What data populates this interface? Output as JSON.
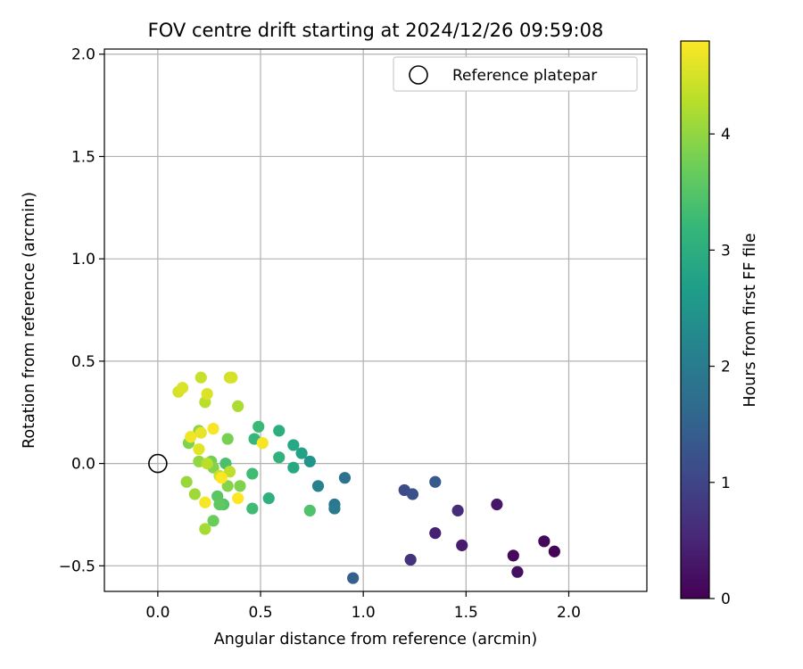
{
  "chart_data": {
    "type": "scatter",
    "title": "FOV centre drift starting at 2024/12/26 09:59:08",
    "xlabel": "Angular distance from reference (arcmin)",
    "ylabel": "Rotation from reference (arcmin)",
    "xlim": [
      -0.26,
      2.38
    ],
    "ylim": [
      -0.625,
      2.025
    ],
    "xticks": [
      0.0,
      0.5,
      1.0,
      1.5,
      2.0
    ],
    "xtick_labels": [
      "0.0",
      "0.5",
      "1.0",
      "1.5",
      "2.0"
    ],
    "yticks": [
      -0.5,
      0.0,
      0.5,
      1.0,
      1.5,
      2.0
    ],
    "ytick_labels": [
      "−0.5",
      "0.0",
      "0.5",
      "1.0",
      "1.5",
      "2.0"
    ],
    "grid": true,
    "legend": {
      "position": "top-right",
      "entries": [
        "Reference platepar"
      ]
    },
    "reference_point": {
      "x": 0.0,
      "y": 0.0,
      "label": "Reference platepar"
    },
    "colorbar": {
      "label": "Hours from first FF file",
      "colormap": "viridis",
      "range": [
        0,
        4.8
      ],
      "ticks": [
        0,
        1,
        2,
        3,
        4
      ],
      "tick_labels": [
        "0",
        "1",
        "2",
        "3",
        "4"
      ]
    },
    "points": [
      {
        "x": 1.93,
        "y": -0.43,
        "h": 0.05
      },
      {
        "x": 1.88,
        "y": -0.38,
        "h": 0.1
      },
      {
        "x": 1.73,
        "y": -0.45,
        "h": 0.1
      },
      {
        "x": 1.75,
        "y": -0.53,
        "h": 0.2
      },
      {
        "x": 1.65,
        "y": -0.2,
        "h": 0.3
      },
      {
        "x": 1.48,
        "y": -0.4,
        "h": 0.4
      },
      {
        "x": 1.35,
        "y": -0.34,
        "h": 0.45
      },
      {
        "x": 1.46,
        "y": -0.23,
        "h": 0.6
      },
      {
        "x": 1.23,
        "y": -0.47,
        "h": 0.7
      },
      {
        "x": 1.2,
        "y": -0.13,
        "h": 1.1
      },
      {
        "x": 1.24,
        "y": -0.15,
        "h": 1.2
      },
      {
        "x": 1.35,
        "y": -0.09,
        "h": 1.35
      },
      {
        "x": 0.95,
        "y": -0.56,
        "h": 1.45
      },
      {
        "x": 0.91,
        "y": -0.07,
        "h": 1.8
      },
      {
        "x": 0.86,
        "y": -0.2,
        "h": 1.9
      },
      {
        "x": 0.86,
        "y": -0.22,
        "h": 2.0
      },
      {
        "x": 0.78,
        "y": -0.11,
        "h": 2.1
      },
      {
        "x": 0.74,
        "y": 0.01,
        "h": 2.5
      },
      {
        "x": 0.7,
        "y": 0.05,
        "h": 2.75
      },
      {
        "x": 0.66,
        "y": 0.09,
        "h": 2.85
      },
      {
        "x": 0.66,
        "y": -0.02,
        "h": 2.9
      },
      {
        "x": 0.59,
        "y": 0.16,
        "h": 3.0
      },
      {
        "x": 0.59,
        "y": 0.03,
        "h": 3.1
      },
      {
        "x": 0.54,
        "y": -0.17,
        "h": 3.05
      },
      {
        "x": 0.49,
        "y": 0.18,
        "h": 3.25
      },
      {
        "x": 0.47,
        "y": 0.12,
        "h": 3.2
      },
      {
        "x": 0.46,
        "y": -0.05,
        "h": 3.3
      },
      {
        "x": 0.46,
        "y": -0.22,
        "h": 3.3
      },
      {
        "x": 0.74,
        "y": -0.23,
        "h": 3.45
      },
      {
        "x": 0.33,
        "y": 0.0,
        "h": 3.4
      },
      {
        "x": 0.32,
        "y": -0.2,
        "h": 3.5
      },
      {
        "x": 0.29,
        "y": -0.16,
        "h": 3.55
      },
      {
        "x": 0.3,
        "y": -0.2,
        "h": 3.6
      },
      {
        "x": 0.27,
        "y": -0.28,
        "h": 3.7
      },
      {
        "x": 0.34,
        "y": 0.12,
        "h": 3.8
      },
      {
        "x": 0.34,
        "y": -0.11,
        "h": 3.9
      },
      {
        "x": 0.4,
        "y": -0.11,
        "h": 3.85
      },
      {
        "x": 0.26,
        "y": 0.01,
        "h": 3.75
      },
      {
        "x": 0.27,
        "y": -0.02,
        "h": 3.9
      },
      {
        "x": 0.2,
        "y": 0.01,
        "h": 4.0
      },
      {
        "x": 0.2,
        "y": 0.16,
        "h": 3.95
      },
      {
        "x": 0.15,
        "y": 0.1,
        "h": 3.85
      },
      {
        "x": 0.14,
        "y": -0.09,
        "h": 4.05
      },
      {
        "x": 0.18,
        "y": -0.15,
        "h": 4.1
      },
      {
        "x": 0.23,
        "y": -0.32,
        "h": 4.15
      },
      {
        "x": 0.24,
        "y": 0.0,
        "h": 4.3
      },
      {
        "x": 0.35,
        "y": -0.04,
        "h": 4.35
      },
      {
        "x": 0.3,
        "y": -0.06,
        "h": 4.4
      },
      {
        "x": 0.39,
        "y": 0.28,
        "h": 4.2
      },
      {
        "x": 0.23,
        "y": 0.3,
        "h": 4.3
      },
      {
        "x": 0.21,
        "y": 0.42,
        "h": 4.4
      },
      {
        "x": 0.35,
        "y": 0.42,
        "h": 4.45
      },
      {
        "x": 0.36,
        "y": 0.42,
        "h": 4.5
      },
      {
        "x": 0.24,
        "y": 0.34,
        "h": 4.55
      },
      {
        "x": 0.1,
        "y": 0.35,
        "h": 4.5
      },
      {
        "x": 0.12,
        "y": 0.37,
        "h": 4.55
      },
      {
        "x": 0.2,
        "y": 0.07,
        "h": 4.6
      },
      {
        "x": 0.21,
        "y": 0.15,
        "h": 4.65
      },
      {
        "x": 0.16,
        "y": 0.13,
        "h": 4.7
      },
      {
        "x": 0.27,
        "y": 0.17,
        "h": 4.75
      },
      {
        "x": 0.51,
        "y": 0.1,
        "h": 4.75
      },
      {
        "x": 0.31,
        "y": -0.07,
        "h": 4.8
      },
      {
        "x": 0.39,
        "y": -0.17,
        "h": 4.8
      },
      {
        "x": 0.23,
        "y": -0.19,
        "h": 4.75
      }
    ]
  }
}
